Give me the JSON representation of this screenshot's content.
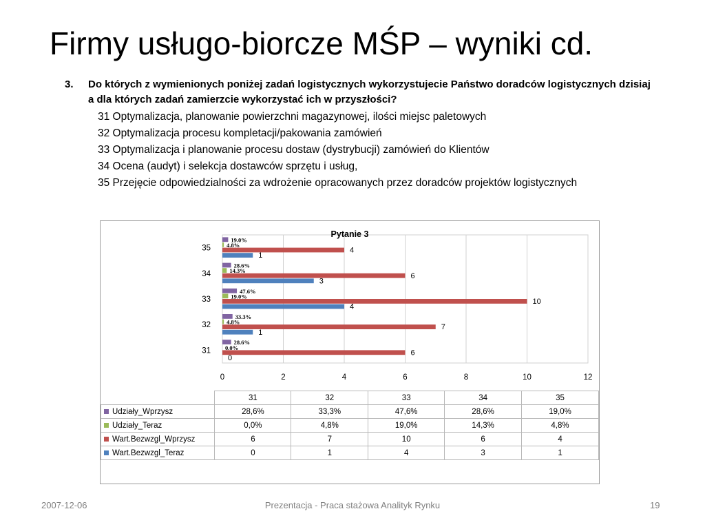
{
  "slide": {
    "title": "Firmy usługo-biorcze MŚP – wyniki cd.",
    "question_number": "3.",
    "question_text": "Do których z wymienionych poniżej zadań logistycznych wykorzystujecie Państwo doradców logistycznych dzisiaj a dla których zadań zamierzcie wykorzystać ich w przyszłości?",
    "options": [
      "31 Optymalizacja, planowanie powierzchni magazynowej, ilości miejsc paletowych",
      "32 Optymalizacja procesu kompletacji/pakowania zamówień",
      "33 Optymalizacja i planowanie procesu dostaw (dystrybucji) zamówień do Klientów",
      "34 Ocena (audyt) i selekcja dostawców sprzętu i usług,",
      "35 Przejęcie odpowiedzialności za wdrożenie opracowanych przez doradców projektów logistycznych"
    ]
  },
  "footer": {
    "date": "2007-12-06",
    "center": "Prezentacja - Praca stażowa Analityk Rynku",
    "page": "19"
  },
  "chart_data": {
    "type": "bar",
    "orientation": "horizontal",
    "title": "Pytanie 3",
    "categories": [
      "31",
      "32",
      "33",
      "34",
      "35"
    ],
    "xlim": [
      0,
      12
    ],
    "xticks": [
      "0",
      "2",
      "4",
      "6",
      "8",
      "10",
      "12"
    ],
    "grid": true,
    "legend": "table-below",
    "series": [
      {
        "name": "Udziały_Wprzysz",
        "color": "#8064a2",
        "values": [
          0.286,
          0.333,
          0.476,
          0.286,
          0.19
        ],
        "labels": [
          "28,6%",
          "33,3%",
          "47,6%",
          "28,6%",
          "19,0%"
        ],
        "chart_labels": [
          "28.6%",
          "33.3%",
          "47.6%",
          "28.6%",
          "19.0%"
        ]
      },
      {
        "name": "Udziały_Teraz",
        "color": "#9bbb59",
        "values": [
          0.0,
          0.048,
          0.19,
          0.143,
          0.048
        ],
        "labels": [
          "0,0%",
          "4,8%",
          "19,0%",
          "14,3%",
          "4,8%"
        ],
        "chart_labels": [
          "0.0%",
          "4.8%",
          "19.0%",
          "14.3%",
          "4.8%"
        ]
      },
      {
        "name": "Wart.Bezwzgl_Wprzysz",
        "color": "#c0504d",
        "values": [
          6,
          7,
          10,
          6,
          4
        ],
        "labels": [
          "6",
          "7",
          "10",
          "6",
          "4"
        ],
        "chart_labels": [
          "6",
          "7",
          "10",
          "6",
          "4"
        ]
      },
      {
        "name": "Wart.Bezwzgl_Teraz",
        "color": "#4f81bd",
        "values": [
          0,
          1,
          4,
          3,
          1
        ],
        "labels": [
          "0",
          "1",
          "4",
          "3",
          "1"
        ],
        "chart_labels": [
          "0",
          "1",
          "4",
          "3",
          "1"
        ]
      }
    ]
  }
}
